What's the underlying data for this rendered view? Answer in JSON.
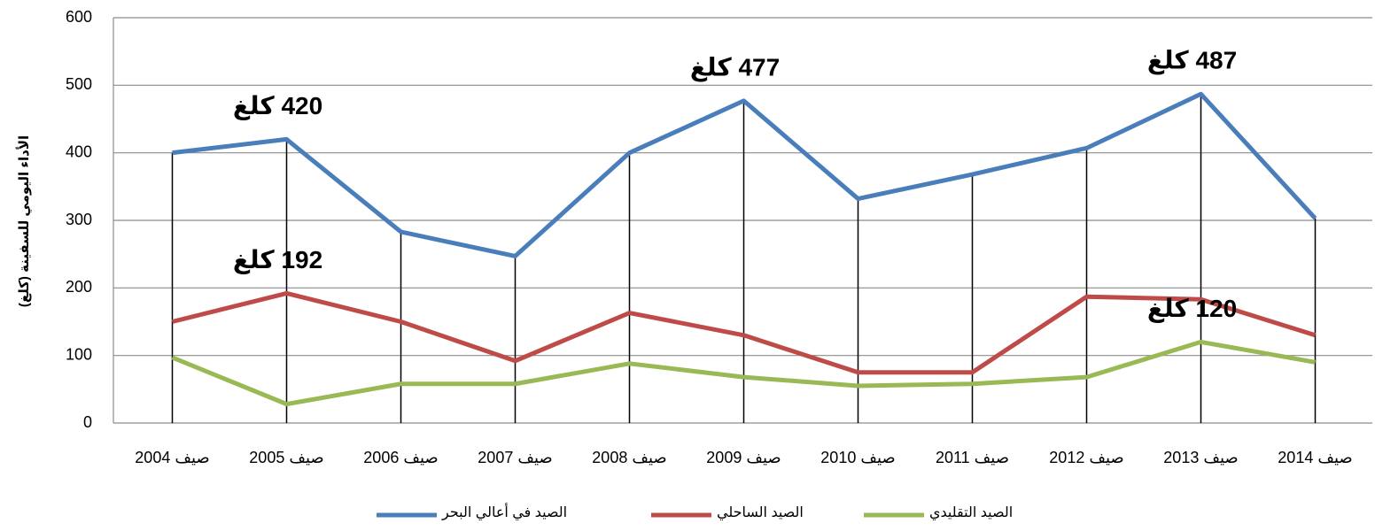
{
  "chart_data": {
    "type": "line",
    "y_label": "الأداء اليومي للسفينة (كلغ)",
    "categories": [
      "صيف 2004",
      "صيف 2005",
      "صيف 2006",
      "صيف 2007",
      "صيف 2008",
      "صيف 2009",
      "صيف 2010",
      "صيف 2011",
      "صيف 2012",
      "صيف 2013",
      "صيف 2014"
    ],
    "series": [
      {
        "name": "الصيد في أعالي البحر",
        "color": "#4a7ebb",
        "label_color": "#4f81bd",
        "values": [
          400,
          420,
          283,
          247,
          400,
          477,
          332,
          368,
          407,
          487,
          303
        ],
        "value_labels": [
          null,
          "420 كلغ",
          null,
          null,
          null,
          "477 كلغ",
          null,
          null,
          null,
          "487 كلغ",
          null
        ]
      },
      {
        "name": "الصيد الساحلي",
        "color": "#be4b48",
        "label_color": "#c0282d",
        "values": [
          150,
          192,
          150,
          92,
          163,
          130,
          75,
          75,
          187,
          183,
          130
        ],
        "value_labels": [
          null,
          "192 كلغ",
          null,
          null,
          null,
          null,
          null,
          null,
          null,
          null,
          null
        ]
      },
      {
        "name": "الصيد التقليدي",
        "color": "#98b954",
        "label_color": "#00b050",
        "values": [
          97,
          28,
          58,
          58,
          88,
          68,
          55,
          58,
          68,
          120,
          90
        ],
        "value_labels": [
          null,
          null,
          null,
          null,
          null,
          null,
          null,
          null,
          null,
          "120 كلغ",
          null
        ]
      }
    ],
    "ylim": [
      0,
      600
    ],
    "yticks": [
      0,
      100,
      200,
      300,
      400,
      500,
      600
    ],
    "grid": true,
    "drop_lines": true,
    "legend": "bottom"
  }
}
